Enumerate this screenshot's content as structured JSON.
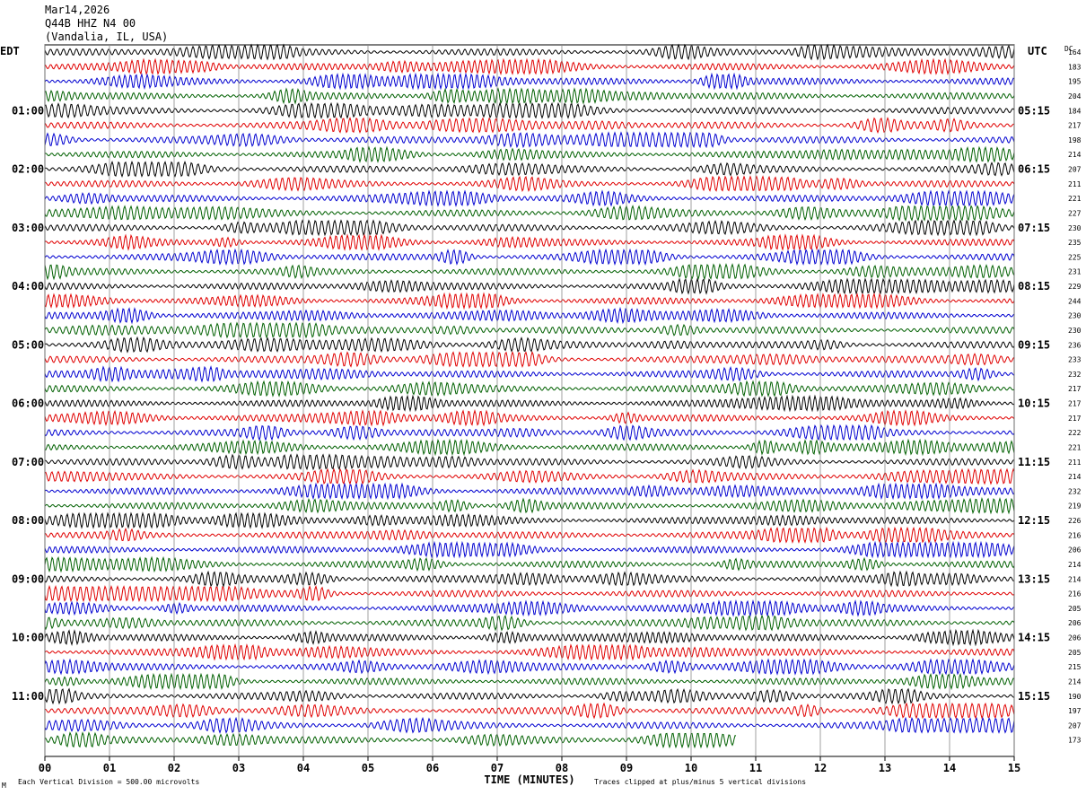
{
  "header": {
    "date": "Mar14,2026",
    "station": "Q44B HHZ N4 00",
    "location": "(Vandalia, IL, USA)"
  },
  "left_zone_label": "EDT",
  "right_zone_label": "UTC",
  "dc_label": "DC",
  "footer": {
    "scale_note": "Each Vertical Division =  500.00 microvolts",
    "clip_note": "Traces clipped at plus/minus 5 vertical divisions",
    "corner_mark": "M"
  },
  "colors": {
    "trace_cycle": [
      "#000000",
      "#e00000",
      "#0000d0",
      "#006000"
    ],
    "grid": "#000000",
    "background": "#ffffff"
  },
  "chart_data": {
    "type": "line",
    "xlabel": "TIME (MINUTES)",
    "xlim": [
      0,
      15
    ],
    "x_ticks": [
      "00",
      "01",
      "02",
      "03",
      "04",
      "05",
      "06",
      "07",
      "08",
      "09",
      "10",
      "11",
      "12",
      "13",
      "14",
      "15"
    ],
    "left_hour_labels": [
      {
        "row": 4,
        "text": "01:00"
      },
      {
        "row": 8,
        "text": "02:00"
      },
      {
        "row": 12,
        "text": "03:00"
      },
      {
        "row": 16,
        "text": "04:00"
      },
      {
        "row": 20,
        "text": "05:00"
      },
      {
        "row": 24,
        "text": "06:00"
      },
      {
        "row": 28,
        "text": "07:00"
      },
      {
        "row": 32,
        "text": "08:00"
      },
      {
        "row": 36,
        "text": "09:00"
      },
      {
        "row": 40,
        "text": "10:00"
      },
      {
        "row": 44,
        "text": "11:00"
      }
    ],
    "right_hour_labels": [
      {
        "row": 0,
        "text": ""
      },
      {
        "row": 4,
        "text": "05:15"
      },
      {
        "row": 8,
        "text": "06:15"
      },
      {
        "row": 12,
        "text": "07:15"
      },
      {
        "row": 16,
        "text": "08:15"
      },
      {
        "row": 20,
        "text": "09:15"
      },
      {
        "row": 24,
        "text": "10:15"
      },
      {
        "row": 28,
        "text": "11:15"
      },
      {
        "row": 32,
        "text": "12:15"
      },
      {
        "row": 36,
        "text": "13:15"
      },
      {
        "row": 40,
        "text": "14:15"
      },
      {
        "row": 44,
        "text": "15:15"
      }
    ],
    "dc_offsets": [
      164,
      183,
      195,
      204,
      184,
      217,
      198,
      214,
      207,
      211,
      221,
      227,
      230,
      235,
      225,
      231,
      229,
      244,
      230,
      230,
      236,
      233,
      232,
      217,
      217,
      217,
      222,
      221,
      211,
      214,
      232,
      219,
      226,
      216,
      206,
      214,
      214,
      216,
      205,
      206,
      206,
      205,
      215,
      214,
      190,
      197,
      207,
      173
    ],
    "last_trace_end_minute": 10.7
  }
}
